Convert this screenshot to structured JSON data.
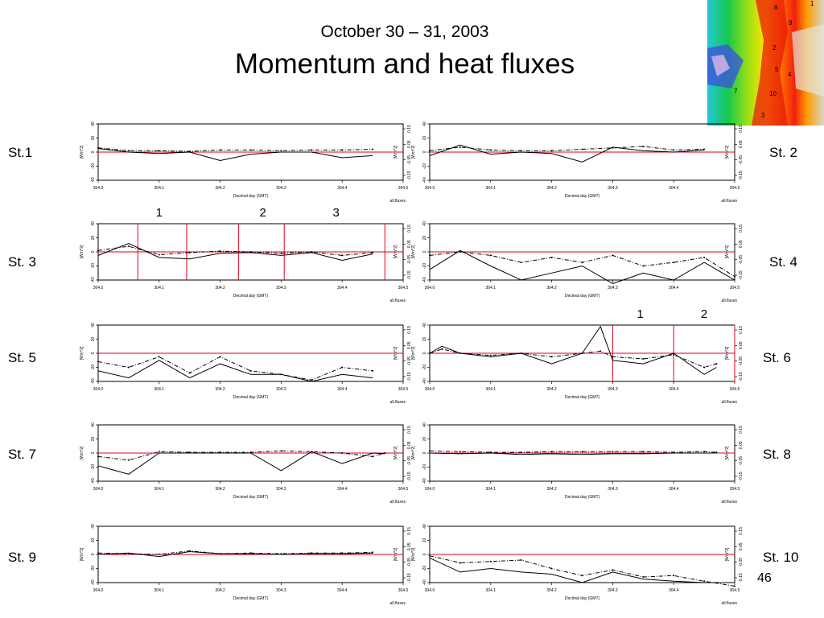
{
  "slide": {
    "subtitle": "October 30 – 31, 2003",
    "title": "Momentum and heat fluxes",
    "page_number": "46"
  },
  "map": {
    "description_icon": "terrain-elevation-map",
    "station_numbers": [
      "8",
      "1",
      "9",
      "2",
      "5",
      "4",
      "7",
      "10",
      "3"
    ]
  },
  "stations": [
    {
      "label": "St.1"
    },
    {
      "label": "St. 2"
    },
    {
      "label": "St. 3"
    },
    {
      "label": "St. 4"
    },
    {
      "label": "St. 5"
    },
    {
      "label": "St. 6"
    },
    {
      "label": "St. 7"
    },
    {
      "label": "St. 8"
    },
    {
      "label": "St. 9"
    },
    {
      "label": "St. 10"
    }
  ],
  "colors": {
    "zero_line": "#e3001b",
    "event_line": "#e3001b",
    "series": "#000000"
  },
  "chart_data": [
    {
      "station": "St.1",
      "type": "line",
      "xlabel": "Decimal day (GMT)",
      "ylabel": "[Wm^2]",
      "footer": "all.fluxes",
      "x": [
        304.0,
        304.05,
        304.1,
        304.15,
        304.2,
        304.25,
        304.3,
        304.35,
        304.4,
        304.45
      ],
      "xticks": [
        "304.0",
        "304.1",
        "304.2",
        "304.3",
        "304.4",
        "304.5"
      ],
      "xlim": [
        304.0,
        304.5
      ],
      "yticks_left": [
        "40",
        "20",
        "0",
        "-20",
        "-40"
      ],
      "ylim_left": [
        -40,
        40
      ],
      "yticks_right": [
        "0.15",
        "0.05",
        "-0.05",
        "-0.15"
      ],
      "series": [
        {
          "values": [
            5,
            0,
            -2,
            0,
            -12,
            -3,
            0,
            0,
            -8,
            -5
          ]
        },
        {
          "values": [
            6,
            2,
            2,
            1,
            3,
            3,
            2,
            3,
            3,
            4
          ]
        }
      ],
      "event_lines": [],
      "event_labels": []
    },
    {
      "station": "St. 2",
      "type": "line",
      "xlabel": "Decimal day (GMT)",
      "ylabel": "[Wm^2]",
      "footer": "all.fluxes",
      "x": [
        304.0,
        304.05,
        304.1,
        304.15,
        304.2,
        304.25,
        304.3,
        304.35,
        304.4,
        304.45
      ],
      "xticks": [
        "304.0",
        "304.1",
        "304.2",
        "304.3",
        "304.4",
        "304.5"
      ],
      "xlim": [
        304.0,
        304.5
      ],
      "yticks_left": [
        "40",
        "20",
        "0",
        "-20",
        "-40"
      ],
      "ylim_left": [
        -40,
        40
      ],
      "yticks_right": [
        "0.15",
        "0.05",
        "-0.05",
        "-0.15"
      ],
      "series": [
        {
          "values": [
            -5,
            10,
            -3,
            0,
            -2,
            -14,
            7,
            2,
            0,
            3
          ]
        },
        {
          "values": [
            2,
            7,
            3,
            2,
            2,
            4,
            6,
            8,
            3,
            4
          ]
        }
      ],
      "event_lines": [],
      "event_labels": []
    },
    {
      "station": "St. 3",
      "type": "line",
      "xlabel": "Decimal day (GMT)",
      "ylabel": "[Wm^2]",
      "footer": "all.fluxes",
      "x": [
        304.0,
        304.05,
        304.1,
        304.15,
        304.2,
        304.25,
        304.3,
        304.35,
        304.4,
        304.45
      ],
      "xticks": [
        "304.0",
        "304.1",
        "304.2",
        "304.3",
        "304.4",
        "304.5"
      ],
      "xlim": [
        304.0,
        304.5
      ],
      "yticks_left": [
        "40",
        "20",
        "0",
        "-20",
        "-40"
      ],
      "ylim_left": [
        -40,
        40
      ],
      "yticks_right": [
        "0.15",
        "0.05",
        "-0.05",
        "-0.15"
      ],
      "series": [
        {
          "values": [
            -5,
            12,
            -8,
            -10,
            -2,
            -1,
            -5,
            -1,
            -12,
            -3
          ]
        },
        {
          "values": [
            2,
            8,
            -4,
            -1,
            1,
            0,
            -2,
            0,
            -5,
            -1
          ]
        }
      ],
      "event_lines": [
        304.065,
        304.145,
        304.23,
        304.305,
        304.47
      ],
      "event_labels": [
        {
          "text": "1",
          "x": 304.1
        },
        {
          "text": "2",
          "x": 304.27
        },
        {
          "text": "3",
          "x": 304.39
        }
      ]
    },
    {
      "station": "St. 4",
      "type": "line",
      "xlabel": "Decimal day (GMT)",
      "ylabel": "[Wm^2]",
      "footer": "all.fluxes",
      "x": [
        304.0,
        304.05,
        304.1,
        304.15,
        304.2,
        304.25,
        304.3,
        304.35,
        304.4,
        304.45,
        304.5
      ],
      "xticks": [
        "304.0",
        "304.1",
        "304.2",
        "304.3",
        "304.4",
        "304.5"
      ],
      "xlim": [
        304.0,
        304.5
      ],
      "yticks_left": [
        "40",
        "20",
        "0",
        "-20",
        "-40"
      ],
      "ylim_left": [
        -40,
        40
      ],
      "yticks_right": [
        "0.15",
        "0.05",
        "-0.05",
        "-0.15"
      ],
      "series": [
        {
          "values": [
            -25,
            2,
            -20,
            -40,
            -30,
            -20,
            -45,
            -30,
            -40,
            -15,
            -40
          ]
        },
        {
          "values": [
            -5,
            0,
            -5,
            -15,
            -8,
            -15,
            -5,
            -20,
            -15,
            -8,
            -35
          ]
        }
      ],
      "event_lines": [],
      "event_labels": []
    },
    {
      "station": "St. 5",
      "type": "line",
      "xlabel": "Decimal day (GMT)",
      "ylabel": "[Wm^2]",
      "footer": "all.fluxes",
      "x": [
        304.0,
        304.05,
        304.1,
        304.15,
        304.2,
        304.25,
        304.3,
        304.35,
        304.4,
        304.45
      ],
      "xticks": [
        "304.0",
        "304.1",
        "304.2",
        "304.3",
        "304.4",
        "304.5"
      ],
      "xlim": [
        304.0,
        304.5
      ],
      "yticks_left": [
        "40",
        "20",
        "0",
        "-20",
        "-40"
      ],
      "ylim_left": [
        -40,
        40
      ],
      "yticks_right": [
        "0.15",
        "0.05",
        "-0.05",
        "-0.15"
      ],
      "series": [
        {
          "values": [
            -25,
            -35,
            -10,
            -35,
            -15,
            -30,
            -30,
            -40,
            -30,
            -35
          ]
        },
        {
          "values": [
            -12,
            -20,
            -5,
            -28,
            -5,
            -25,
            -30,
            -38,
            -20,
            -25
          ]
        }
      ],
      "event_lines": [],
      "event_labels": []
    },
    {
      "station": "St. 6",
      "type": "line",
      "xlabel": "Decimal day (GMT)",
      "ylabel": "[Wm^2]",
      "footer": "all.fluxes",
      "x": [
        304.0,
        304.02,
        304.05,
        304.1,
        304.15,
        304.2,
        304.25,
        304.28,
        304.3,
        304.35,
        304.4,
        304.45,
        304.47
      ],
      "xticks": [
        "304.0",
        "304.1",
        "304.2",
        "304.3",
        "304.4",
        "304.5"
      ],
      "xlim": [
        304.0,
        304.5
      ],
      "yticks_left": [
        "40",
        "20",
        "0",
        "-20",
        "-40"
      ],
      "ylim_left": [
        -40,
        40
      ],
      "yticks_right": [
        "0.15",
        "0.05",
        "-0.05",
        "-0.15"
      ],
      "series": [
        {
          "values": [
            0,
            10,
            0,
            -5,
            0,
            -15,
            0,
            38,
            -10,
            -15,
            0,
            -30,
            -20
          ]
        },
        {
          "values": [
            0,
            6,
            0,
            -3,
            0,
            -5,
            0,
            3,
            -5,
            -8,
            -2,
            -20,
            -15
          ]
        }
      ],
      "event_lines": [
        304.3,
        304.4,
        304.5
      ],
      "event_labels": [
        {
          "text": "1",
          "x": 304.345
        },
        {
          "text": "2",
          "x": 304.45
        }
      ]
    },
    {
      "station": "St. 7",
      "type": "line",
      "xlabel": "Decimal day (GMT)",
      "ylabel": "[Wm^2]",
      "footer": "all.fluxes",
      "x": [
        304.0,
        304.05,
        304.1,
        304.15,
        304.2,
        304.25,
        304.3,
        304.35,
        304.4,
        304.45,
        304.47
      ],
      "xticks": [
        "304.0",
        "304.1",
        "304.2",
        "304.3",
        "304.4",
        "304.5"
      ],
      "xlim": [
        304.0,
        304.5
      ],
      "yticks_left": [
        "40",
        "20",
        "0",
        "-20",
        "-40"
      ],
      "ylim_left": [
        -40,
        40
      ],
      "yticks_right": [
        "0.15",
        "0.05",
        "-0.05",
        "-0.15"
      ],
      "series": [
        {
          "values": [
            -18,
            -30,
            0,
            0,
            0,
            0,
            -25,
            2,
            -15,
            0,
            -1
          ]
        },
        {
          "values": [
            -5,
            -10,
            2,
            1,
            1,
            1,
            3,
            2,
            0,
            -5,
            0
          ]
        }
      ],
      "event_lines": [],
      "event_labels": []
    },
    {
      "station": "St. 8",
      "type": "line",
      "xlabel": "Decimal day (GMT)",
      "ylabel": "[Wm^2]",
      "footer": "all.fluxes",
      "x": [
        304.0,
        304.05,
        304.1,
        304.15,
        304.2,
        304.25,
        304.3,
        304.35,
        304.4,
        304.45,
        304.47
      ],
      "xticks": [
        "304.0",
        "304.1",
        "304.2",
        "304.3",
        "304.4",
        "304.5"
      ],
      "xlim": [
        304.0,
        304.5
      ],
      "yticks_left": [
        "40",
        "20",
        "0",
        "-20",
        "-40"
      ],
      "ylim_left": [
        -40,
        40
      ],
      "yticks_right": [
        "0.15",
        "0.05",
        "-0.05",
        "-0.15"
      ],
      "series": [
        {
          "values": [
            0,
            -1,
            0,
            -2,
            -1,
            -2,
            -1,
            -1,
            0,
            0,
            0
          ]
        },
        {
          "values": [
            3,
            2,
            1,
            1,
            2,
            2,
            2,
            2,
            1,
            2,
            1
          ]
        }
      ],
      "event_lines": [],
      "event_labels": []
    },
    {
      "station": "St. 9",
      "type": "line",
      "xlabel": "Decimal day (GMT)",
      "ylabel": "[Wm^2]",
      "footer": "all.fluxes",
      "x": [
        304.0,
        304.05,
        304.1,
        304.15,
        304.2,
        304.25,
        304.3,
        304.35,
        304.4,
        304.45
      ],
      "xticks": [
        "304.0",
        "304.1",
        "304.2",
        "304.3",
        "304.4",
        "304.5"
      ],
      "xlim": [
        304.0,
        304.5
      ],
      "yticks_left": [
        "40",
        "20",
        "0",
        "-20",
        "-40"
      ],
      "ylim_left": [
        -40,
        40
      ],
      "yticks_right": [
        "0.15",
        "0.05",
        "-0.05",
        "-0.15"
      ],
      "series": [
        {
          "values": [
            0,
            2,
            -3,
            4,
            1,
            1,
            0,
            1,
            1,
            2
          ]
        },
        {
          "values": [
            2,
            1,
            0,
            5,
            1,
            2,
            1,
            2,
            2,
            3
          ]
        }
      ],
      "event_lines": [],
      "event_labels": []
    },
    {
      "station": "St. 10",
      "type": "line",
      "xlabel": "Decimal day (GMT)",
      "ylabel": "[Wm^2]",
      "footer": "all.fluxes",
      "x": [
        304.0,
        304.05,
        304.1,
        304.15,
        304.2,
        304.25,
        304.3,
        304.35,
        304.4,
        304.45,
        304.5
      ],
      "xticks": [
        "304.0",
        "304.1",
        "304.2",
        "304.3",
        "304.4",
        "304.5"
      ],
      "xlim": [
        304.0,
        304.5
      ],
      "yticks_left": [
        "40",
        "20",
        "0",
        "-20",
        "-40"
      ],
      "ylim_left": [
        -40,
        40
      ],
      "yticks_right": [
        "0.15",
        "0.05",
        "-0.05",
        "-0.15"
      ],
      "series": [
        {
          "values": [
            -5,
            -25,
            -20,
            -25,
            -28,
            -40,
            -25,
            -35,
            -38,
            -40,
            -40
          ]
        },
        {
          "values": [
            -2,
            -12,
            -10,
            -8,
            -20,
            -30,
            -22,
            -32,
            -30,
            -38,
            -45
          ]
        }
      ],
      "event_lines": [],
      "event_labels": []
    }
  ]
}
